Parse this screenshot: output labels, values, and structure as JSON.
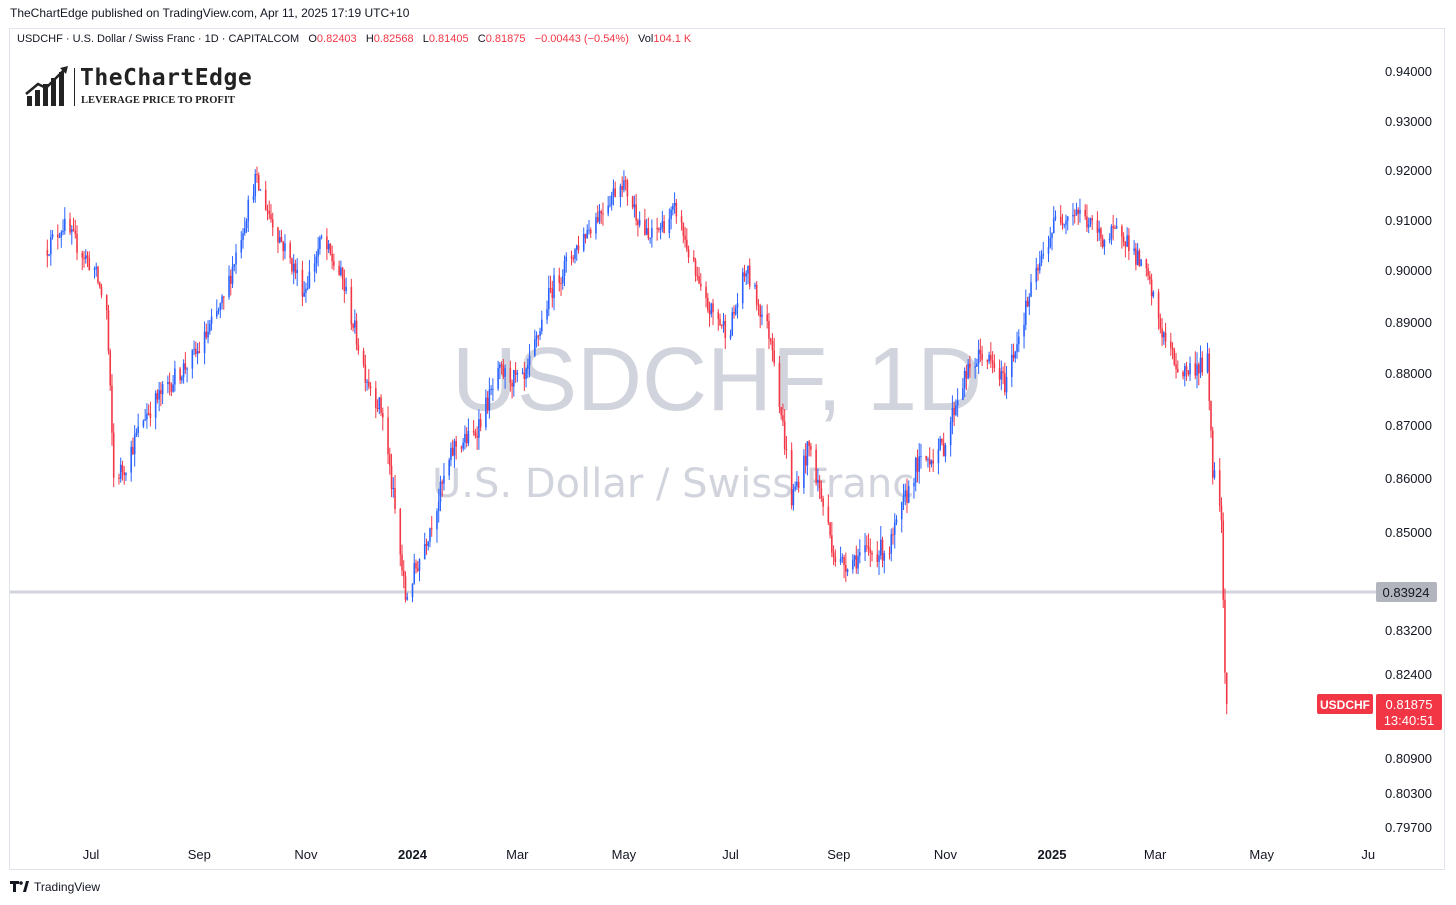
{
  "publisher": "TheChartEdge published on TradingView.com, Apr 11, 2025 17:19 UTC+10",
  "legend": {
    "symbol_line": "USDCHF · U.S. Dollar / Swiss Franc · 1D · CAPITALCOM",
    "o_label": "O",
    "open": "0.82403",
    "h_label": "H",
    "high": "0.82568",
    "l_label": "L",
    "low": "0.81405",
    "c_label": "C",
    "close": "0.81875",
    "change": "−0.00443 (−0.54%)",
    "vol_label": "Vol",
    "volume": "104.1 K"
  },
  "logo": {
    "name": "TheChartEdge",
    "tagline": "LEVERAGE PRICE TO PROFIT"
  },
  "watermark": {
    "symbol": "USDCHF, 1D",
    "description": "U.S. Dollar / Swiss Franc"
  },
  "branding": {
    "name": "TradingView"
  },
  "colors": {
    "up": "#2962ff",
    "down": "#f23645",
    "level": "#d1d4dc",
    "level_label_bg": "#b2b5be"
  },
  "chart_data": {
    "type": "candlestick",
    "series_name": "USDCHF",
    "y_ticks": [
      "0.94000",
      "0.93000",
      "0.92000",
      "0.91000",
      "0.90000",
      "0.89000",
      "0.88000",
      "0.87000",
      "0.86000",
      "0.85000",
      "0.83200",
      "0.82400",
      "0.80900",
      "0.80300",
      "0.79700"
    ],
    "x_ticks": [
      {
        "label": "Jul",
        "date": "2023-07-01",
        "bold": false
      },
      {
        "label": "Sep",
        "date": "2023-09-01",
        "bold": false
      },
      {
        "label": "Nov",
        "date": "2023-11-01",
        "bold": false
      },
      {
        "label": "2024",
        "date": "2024-01-01",
        "bold": true
      },
      {
        "label": "Mar",
        "date": "2024-03-01",
        "bold": false
      },
      {
        "label": "May",
        "date": "2024-05-01",
        "bold": false
      },
      {
        "label": "Jul",
        "date": "2024-07-01",
        "bold": false
      },
      {
        "label": "Sep",
        "date": "2024-09-01",
        "bold": false
      },
      {
        "label": "Nov",
        "date": "2024-11-01",
        "bold": false
      },
      {
        "label": "2025",
        "date": "2025-01-01",
        "bold": true
      },
      {
        "label": "Mar",
        "date": "2025-03-01",
        "bold": false
      },
      {
        "label": "May",
        "date": "2025-05-01",
        "bold": false
      },
      {
        "label": "Ju",
        "date": "2025-07-01",
        "bold": false
      }
    ],
    "horizontal_level": {
      "value": 0.83924,
      "label": "0.83924"
    },
    "last_price": {
      "value": 0.81875,
      "label": "0.81875",
      "countdown": "13:40:51",
      "symbol": "USDCHF"
    },
    "path": [
      [
        "2023-06-05",
        0.904
      ],
      [
        "2023-06-15",
        0.909
      ],
      [
        "2023-06-25",
        0.904
      ],
      [
        "2023-07-03",
        0.9
      ],
      [
        "2023-07-10",
        0.892
      ],
      [
        "2023-07-14",
        0.86
      ],
      [
        "2023-07-20",
        0.862
      ],
      [
        "2023-08-01",
        0.872
      ],
      [
        "2023-08-15",
        0.878
      ],
      [
        "2023-08-31",
        0.884
      ],
      [
        "2023-09-15",
        0.894
      ],
      [
        "2023-10-03",
        0.918
      ],
      [
        "2023-10-15",
        0.908
      ],
      [
        "2023-10-31",
        0.896
      ],
      [
        "2023-11-10",
        0.906
      ],
      [
        "2023-11-22",
        0.898
      ],
      [
        "2023-12-05",
        0.88
      ],
      [
        "2023-12-15",
        0.872
      ],
      [
        "2023-12-28",
        0.838
      ],
      [
        "2024-01-10",
        0.85
      ],
      [
        "2024-01-25",
        0.866
      ],
      [
        "2024-02-05",
        0.868
      ],
      [
        "2024-02-20",
        0.88
      ],
      [
        "2024-03-05",
        0.878
      ],
      [
        "2024-03-20",
        0.896
      ],
      [
        "2024-04-10",
        0.908
      ],
      [
        "2024-04-30",
        0.918
      ],
      [
        "2024-05-15",
        0.906
      ],
      [
        "2024-05-31",
        0.912
      ],
      [
        "2024-06-15",
        0.894
      ],
      [
        "2024-06-30",
        0.888
      ],
      [
        "2024-07-10",
        0.9
      ],
      [
        "2024-07-25",
        0.886
      ],
      [
        "2024-08-05",
        0.856
      ],
      [
        "2024-08-15",
        0.866
      ],
      [
        "2024-08-31",
        0.844
      ],
      [
        "2024-09-15",
        0.846
      ],
      [
        "2024-09-30",
        0.847
      ],
      [
        "2024-10-15",
        0.862
      ],
      [
        "2024-10-31",
        0.866
      ],
      [
        "2024-11-10",
        0.878
      ],
      [
        "2024-11-22",
        0.884
      ],
      [
        "2024-12-05",
        0.878
      ],
      [
        "2024-12-20",
        0.896
      ],
      [
        "2025-01-03",
        0.91
      ],
      [
        "2025-01-15",
        0.912
      ],
      [
        "2025-01-31",
        0.906
      ],
      [
        "2025-02-10",
        0.908
      ],
      [
        "2025-02-25",
        0.898
      ],
      [
        "2025-03-05",
        0.888
      ],
      [
        "2025-03-15",
        0.88
      ],
      [
        "2025-03-31",
        0.882
      ],
      [
        "2025-04-03",
        0.862
      ],
      [
        "2025-04-08",
        0.854
      ],
      [
        "2025-04-10",
        0.824
      ],
      [
        "2025-04-11",
        0.81875
      ]
    ]
  }
}
